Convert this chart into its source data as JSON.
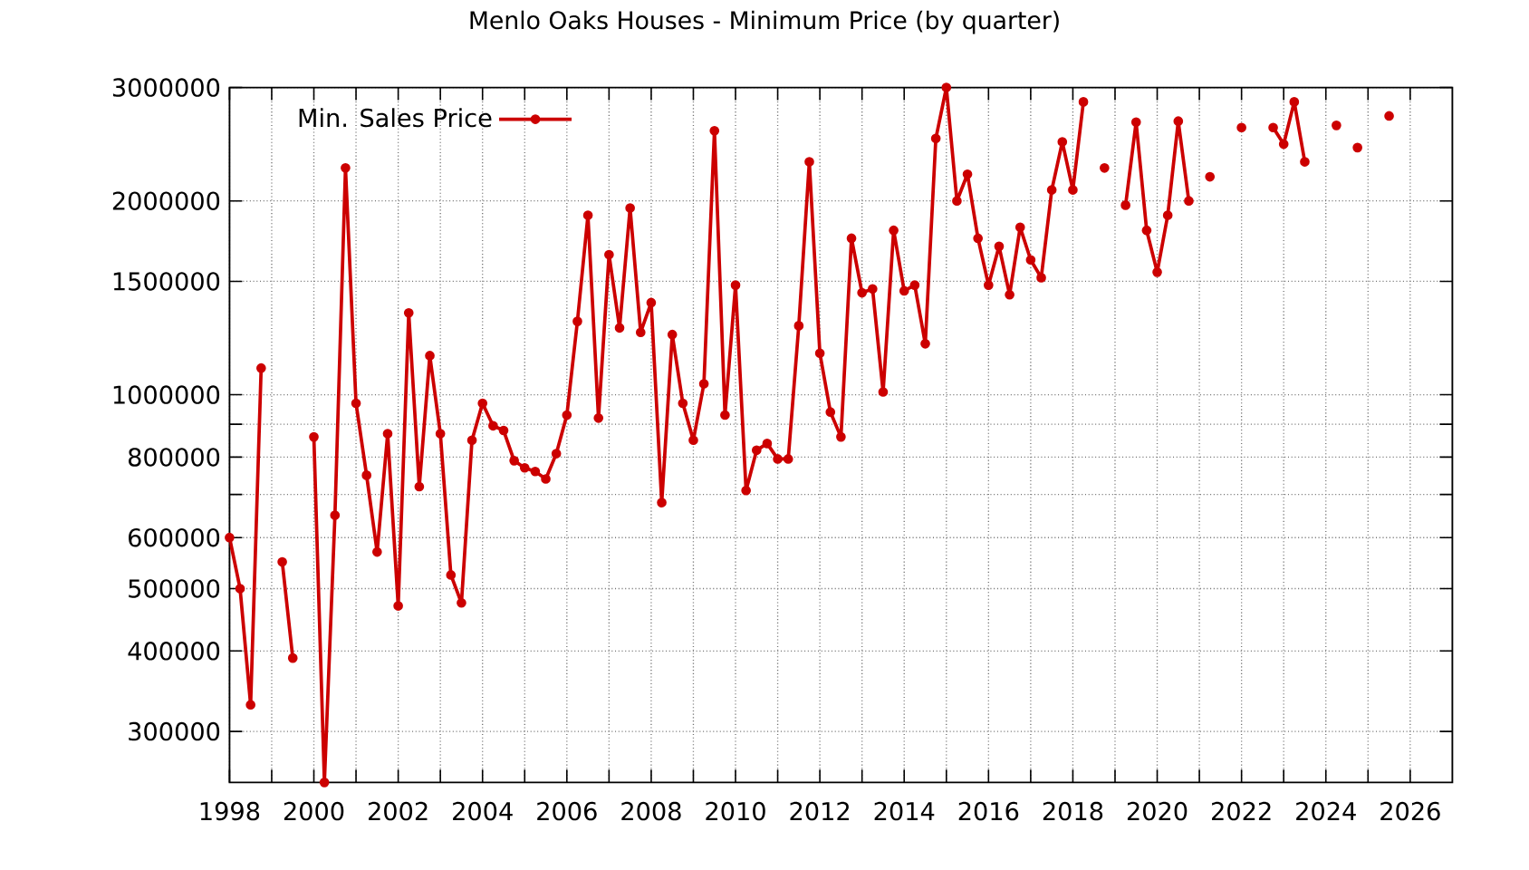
{
  "chart_data": {
    "type": "line",
    "title": "Menlo Oaks Houses - Minimum Price (by quarter)",
    "x": [
      1998,
      1998.25,
      1998.5,
      1998.75,
      1999,
      1999.25,
      1999.5,
      1999.75,
      2000,
      2000.25,
      2000.5,
      2000.75,
      2001,
      2001.25,
      2001.5,
      2001.75,
      2002,
      2002.25,
      2002.5,
      2002.75,
      2003,
      2003.25,
      2003.5,
      2003.75,
      2004,
      2004.25,
      2004.5,
      2004.75,
      2005,
      2005.25,
      2005.5,
      2005.75,
      2006,
      2006.25,
      2006.5,
      2006.75,
      2007,
      2007.25,
      2007.5,
      2007.75,
      2008,
      2008.25,
      2008.5,
      2008.75,
      2009,
      2009.25,
      2009.5,
      2009.75,
      2010,
      2010.25,
      2010.5,
      2010.75,
      2011,
      2011.25,
      2011.5,
      2011.75,
      2012,
      2012.25,
      2012.5,
      2012.75,
      2013,
      2013.25,
      2013.5,
      2013.75,
      2014,
      2014.25,
      2014.5,
      2014.75,
      2015,
      2015.25,
      2015.5,
      2015.75,
      2016,
      2016.25,
      2016.5,
      2016.75,
      2017,
      2017.25,
      2017.5,
      2017.75,
      2018,
      2018.25,
      2018.5,
      2018.75,
      2019,
      2019.25,
      2019.5,
      2019.75,
      2020,
      2020.25,
      2020.5,
      2020.75,
      2021,
      2021.25,
      2021.5,
      2021.75,
      2022,
      2022.25,
      2022.5,
      2022.75,
      2023,
      2023.25,
      2023.5,
      2023.75,
      2024,
      2024.25,
      2024.5,
      2024.75,
      2025,
      2025.25,
      2025.5
    ],
    "series": [
      {
        "name": "Min. Sales Price",
        "color": "#cc0000",
        "values": [
          600000,
          500000,
          330000,
          1100000,
          null,
          550000,
          390000,
          null,
          860000,
          250000,
          650000,
          2250000,
          970000,
          750000,
          570000,
          870000,
          470000,
          1340000,
          720000,
          1150000,
          870000,
          525000,
          475000,
          850000,
          970000,
          895000,
          880000,
          790000,
          770000,
          760000,
          740000,
          810000,
          930000,
          1300000,
          1900000,
          920000,
          1650000,
          1270000,
          1950000,
          1250000,
          1390000,
          680000,
          1240000,
          970000,
          850000,
          1040000,
          2570000,
          930000,
          1480000,
          710000,
          820000,
          840000,
          795000,
          795000,
          1280000,
          2300000,
          1160000,
          940000,
          860000,
          1750000,
          1440000,
          1460000,
          1010000,
          1800000,
          1450000,
          1480000,
          1200000,
          2500000,
          3000000,
          2000000,
          2200000,
          1750000,
          1480000,
          1700000,
          1430000,
          1820000,
          1620000,
          1520000,
          2080000,
          2470000,
          2080000,
          2850000,
          null,
          2250000,
          null,
          1970000,
          2650000,
          1800000,
          1550000,
          1900000,
          2660000,
          2000000,
          null,
          2180000,
          null,
          null,
          2600000,
          null,
          null,
          2600000,
          2450000,
          2850000,
          2300000,
          null,
          null,
          2620000,
          null,
          2420000,
          null,
          null,
          2710000
        ]
      }
    ],
    "xlim": [
      1998,
      2027
    ],
    "ylim": [
      250000,
      3000000
    ],
    "xticks": [
      1998,
      {
        "value": 1999,
        "label": null
      },
      2000,
      {
        "value": 2001,
        "label": null
      },
      2002,
      {
        "value": 2003,
        "label": null
      },
      2004,
      {
        "value": 2005,
        "label": null
      },
      2006,
      {
        "value": 2007,
        "label": null
      },
      2008,
      {
        "value": 2009,
        "label": null
      },
      2010,
      {
        "value": 2011,
        "label": null
      },
      2012,
      {
        "value": 2013,
        "label": null
      },
      2014,
      {
        "value": 2015,
        "label": null
      },
      2016,
      {
        "value": 2017,
        "label": null
      },
      2018,
      {
        "value": 2019,
        "label": null
      },
      2020,
      {
        "value": 2021,
        "label": null
      },
      2022,
      {
        "value": 2023,
        "label": null
      },
      2024,
      {
        "value": 2025,
        "label": null
      },
      2026
    ],
    "yticks": [
      300000,
      400000,
      500000,
      600000,
      {
        "value": 700000,
        "label": null
      },
      800000,
      {
        "value": 900000,
        "label": null
      },
      1000000,
      1500000,
      2000000,
      3000000
    ],
    "log": "y",
    "grid": true,
    "legend": "top left",
    "marker": "circle"
  }
}
